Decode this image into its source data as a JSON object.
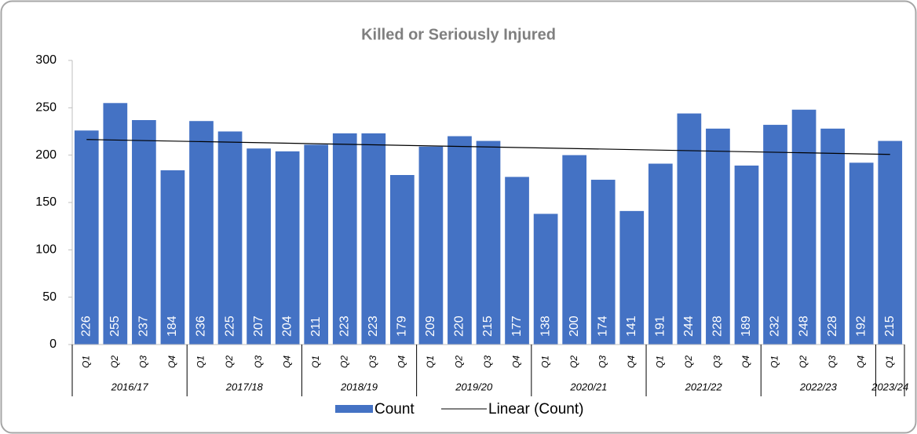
{
  "chart_data": {
    "type": "bar",
    "title": "Killed or Seriously Injured",
    "categories": [
      "Q1",
      "Q2",
      "Q3",
      "Q4",
      "Q1",
      "Q2",
      "Q3",
      "Q4",
      "Q1",
      "Q2",
      "Q3",
      "Q4",
      "Q1",
      "Q2",
      "Q3",
      "Q4",
      "Q1",
      "Q2",
      "Q3",
      "Q4",
      "Q1",
      "Q2",
      "Q3",
      "Q4",
      "Q1",
      "Q2",
      "Q3",
      "Q4",
      "Q1"
    ],
    "groups": [
      {
        "label": "2016/17",
        "size": 4
      },
      {
        "label": "2017/18",
        "size": 4
      },
      {
        "label": "2018/19",
        "size": 4
      },
      {
        "label": "2019/20",
        "size": 4
      },
      {
        "label": "2020/21",
        "size": 4
      },
      {
        "label": "2021/22",
        "size": 4
      },
      {
        "label": "2022/23",
        "size": 4
      },
      {
        "label": "2023/24",
        "size": 1
      }
    ],
    "series": [
      {
        "name": "Count",
        "color": "#4472c4",
        "values": [
          226,
          255,
          237,
          184,
          236,
          225,
          207,
          204,
          211,
          223,
          223,
          179,
          209,
          220,
          215,
          177,
          138,
          200,
          174,
          141,
          191,
          244,
          228,
          189,
          232,
          248,
          228,
          192,
          215
        ]
      }
    ],
    "trendline": {
      "name": "Linear (Count)",
      "fit": "linear",
      "color": "#000000"
    },
    "ylim": [
      0,
      300
    ],
    "yticks": [
      0,
      50,
      100,
      150,
      200,
      250,
      300
    ]
  }
}
